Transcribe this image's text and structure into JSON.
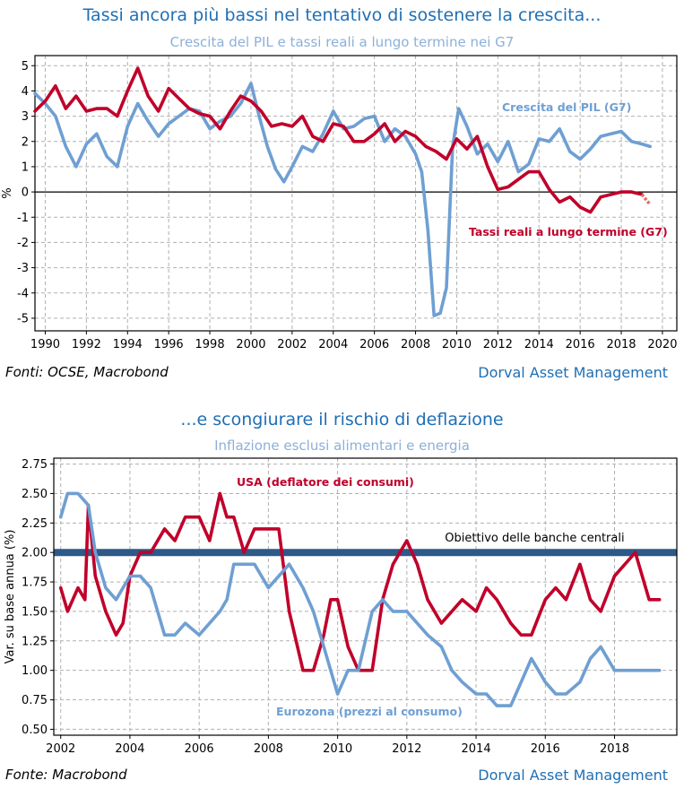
{
  "colors": {
    "title": "#1f6fb4",
    "subtitle": "#8db0d8",
    "red": "#c0002a",
    "blue": "#6f9fd2",
    "target": "#2d5a88",
    "grid": "#b0b0b0"
  },
  "chart_data": [
    {
      "type": "line",
      "title": "Tassi ancora più bassi nel tentativo di sostenere la crescita...",
      "subtitle": "Crescita del PIL e tassi reali a lungo termine nei G7",
      "ylabel": "%",
      "xlim": [
        1989.5,
        2020.7
      ],
      "ylim": [
        -5.5,
        5.4
      ],
      "x_ticks": [
        1990,
        1992,
        1994,
        1996,
        1998,
        2000,
        2002,
        2004,
        2006,
        2008,
        2010,
        2012,
        2014,
        2016,
        2018,
        2020
      ],
      "x_tick_labels": [
        "1990",
        "1992",
        "1994",
        "1996",
        "1998",
        "2000",
        "2002",
        "2004",
        "2006",
        "2008",
        "2010",
        "2012",
        "2014",
        "2016",
        "2018",
        "2020"
      ],
      "y_ticks": [
        -5,
        -4,
        -3,
        -2,
        -1,
        0,
        1,
        2,
        3,
        4,
        5
      ],
      "y_tick_labels": [
        "-5",
        "-4",
        "-3",
        "-2",
        "-1",
        "0",
        "1",
        "2",
        "3",
        "4",
        "5"
      ],
      "grid": true,
      "source": "Fonti: OCSE, Macrobond",
      "brand": "Dorval Asset Management",
      "series": [
        {
          "name": "Crescita del PIL (G7)",
          "color": "#6f9fd2",
          "x": [
            1989.5,
            1990,
            1990.5,
            1991,
            1991.5,
            1992,
            1992.5,
            1993,
            1993.5,
            1994,
            1994.5,
            1995,
            1995.5,
            1996,
            1996.5,
            1997,
            1997.5,
            1998,
            1998.5,
            1999,
            1999.5,
            2000,
            2000.4,
            2000.8,
            2001.2,
            2001.6,
            2002,
            2002.5,
            2003,
            2003.5,
            2004,
            2004.5,
            2005,
            2005.5,
            2006,
            2006.5,
            2007,
            2007.5,
            2008,
            2008.3,
            2008.6,
            2008.9,
            2009.2,
            2009.5,
            2009.8,
            2010.1,
            2010.5,
            2011,
            2011.5,
            2012,
            2012.5,
            2013,
            2013.5,
            2014,
            2014.5,
            2015,
            2015.5,
            2016,
            2016.5,
            2017,
            2017.5,
            2018,
            2018.5,
            2019,
            2019.4
          ],
          "values": [
            3.9,
            3.5,
            3.0,
            1.8,
            1.0,
            1.9,
            2.3,
            1.4,
            1.0,
            2.6,
            3.5,
            2.8,
            2.2,
            2.7,
            3.0,
            3.3,
            3.2,
            2.5,
            2.8,
            3.0,
            3.5,
            4.3,
            3.0,
            1.8,
            0.9,
            0.4,
            1.0,
            1.8,
            1.6,
            2.3,
            3.2,
            2.5,
            2.6,
            2.9,
            3.0,
            2.0,
            2.5,
            2.2,
            1.5,
            0.8,
            -1.5,
            -4.9,
            -4.8,
            -3.8,
            1.8,
            3.3,
            2.6,
            1.5,
            1.9,
            1.2,
            2.0,
            0.8,
            1.1,
            2.1,
            2.0,
            2.5,
            1.6,
            1.3,
            1.7,
            2.2,
            2.3,
            2.4,
            2.0,
            1.9,
            1.8
          ]
        },
        {
          "name": "Tassi reali a lungo termine (G7)",
          "color": "#c0002a",
          "x": [
            1989.5,
            1990,
            1990.5,
            1991,
            1991.5,
            1992,
            1992.5,
            1993,
            1993.5,
            1994,
            1994.5,
            1995,
            1995.5,
            1996,
            1996.5,
            1997,
            1997.5,
            1998,
            1998.5,
            1999,
            1999.5,
            2000,
            2000.5,
            2001,
            2001.5,
            2002,
            2002.5,
            2003,
            2003.5,
            2004,
            2004.5,
            2005,
            2005.5,
            2006,
            2006.5,
            2007,
            2007.5,
            2008,
            2008.5,
            2009,
            2009.5,
            2010,
            2010.5,
            2011,
            2011.5,
            2012,
            2012.5,
            2013,
            2013.5,
            2014,
            2014.5,
            2015,
            2015.5,
            2016,
            2016.5,
            2017,
            2017.5,
            2018,
            2018.5,
            2019
          ],
          "values": [
            3.2,
            3.6,
            4.2,
            3.3,
            3.8,
            3.2,
            3.3,
            3.3,
            3.0,
            4.0,
            4.9,
            3.8,
            3.2,
            4.1,
            3.7,
            3.3,
            3.1,
            3.0,
            2.5,
            3.2,
            3.8,
            3.6,
            3.2,
            2.6,
            2.7,
            2.6,
            3.0,
            2.2,
            2.0,
            2.7,
            2.6,
            2.0,
            2.0,
            2.3,
            2.7,
            2.0,
            2.4,
            2.2,
            1.8,
            1.6,
            1.3,
            2.1,
            1.7,
            2.2,
            1.0,
            0.1,
            0.2,
            0.5,
            0.8,
            0.8,
            0.1,
            -0.4,
            -0.2,
            -0.6,
            -0.8,
            -0.2,
            -0.1,
            0.0,
            0.0,
            -0.1
          ]
        }
      ],
      "dashed_tail": {
        "x": [
          2019,
          2019.4
        ],
        "values": [
          -0.1,
          -0.5
        ],
        "color": "#e07070"
      }
    },
    {
      "type": "line",
      "title": "...e scongiurare il rischio di deflazione",
      "subtitle": "Inflazione esclusi alimentari e energia",
      "ylabel": "Var. su base annua (%)",
      "xlim": [
        2001.8,
        2019.8
      ],
      "ylim": [
        0.45,
        2.8
      ],
      "x_ticks": [
        2002,
        2004,
        2006,
        2008,
        2010,
        2012,
        2014,
        2016,
        2018
      ],
      "x_tick_labels": [
        "2002",
        "2004",
        "2006",
        "2008",
        "2010",
        "2012",
        "2014",
        "2016",
        "2018"
      ],
      "y_ticks": [
        0.5,
        0.75,
        1.0,
        1.25,
        1.5,
        1.75,
        2.0,
        2.25,
        2.5,
        2.75
      ],
      "y_tick_labels": [
        "0.50",
        "0.75",
        "1.00",
        "1.25",
        "1.50",
        "1.75",
        "2.00",
        "2.25",
        "2.50",
        "2.75"
      ],
      "grid": true,
      "source": "Fonte: Macrobond",
      "brand": "Dorval Asset Management",
      "reference_line": {
        "label": "Obiettivo delle banche centrali",
        "value": 2.0,
        "color": "#2d5a88"
      },
      "series": [
        {
          "name": "USA (deflatore dei consumi)",
          "color": "#c0002a",
          "x": [
            2002,
            2002.2,
            2002.5,
            2002.7,
            2002.8,
            2003,
            2003.3,
            2003.6,
            2003.8,
            2004,
            2004.3,
            2004.6,
            2005,
            2005.3,
            2005.6,
            2006,
            2006.3,
            2006.6,
            2006.8,
            2007,
            2007.3,
            2007.6,
            2008,
            2008.3,
            2008.6,
            2009,
            2009.3,
            2009.6,
            2009.8,
            2010,
            2010.3,
            2010.6,
            2011,
            2011.3,
            2011.6,
            2012,
            2012.3,
            2012.6,
            2013,
            2013.3,
            2013.6,
            2014,
            2014.3,
            2014.6,
            2015,
            2015.3,
            2015.6,
            2016,
            2016.3,
            2016.6,
            2017,
            2017.3,
            2017.6,
            2018,
            2018.3,
            2018.6,
            2019,
            2019.3
          ],
          "values": [
            1.7,
            1.5,
            1.7,
            1.6,
            2.4,
            1.8,
            1.5,
            1.3,
            1.4,
            1.8,
            2.0,
            2.0,
            2.2,
            2.1,
            2.3,
            2.3,
            2.1,
            2.5,
            2.3,
            2.3,
            2.0,
            2.2,
            2.2,
            2.2,
            1.5,
            1.0,
            1.0,
            1.3,
            1.6,
            1.6,
            1.2,
            1.0,
            1.0,
            1.6,
            1.9,
            2.1,
            1.9,
            1.6,
            1.4,
            1.5,
            1.6,
            1.5,
            1.7,
            1.6,
            1.4,
            1.3,
            1.3,
            1.6,
            1.7,
            1.6,
            1.9,
            1.6,
            1.5,
            1.8,
            1.9,
            2.0,
            1.6,
            1.6
          ]
        },
        {
          "name": "Eurozona (prezzi al consumo)",
          "color": "#6f9fd2",
          "x": [
            2002,
            2002.2,
            2002.5,
            2002.8,
            2003,
            2003.3,
            2003.6,
            2003.8,
            2004,
            2004.3,
            2004.6,
            2005,
            2005.3,
            2005.6,
            2006,
            2006.3,
            2006.6,
            2006.8,
            2007,
            2007.3,
            2007.6,
            2008,
            2008.3,
            2008.6,
            2009,
            2009.3,
            2009.6,
            2009.8,
            2010,
            2010.3,
            2010.6,
            2011,
            2011.3,
            2011.6,
            2012,
            2012.3,
            2012.6,
            2013,
            2013.3,
            2013.6,
            2014,
            2014.3,
            2014.6,
            2015,
            2015.3,
            2015.6,
            2016,
            2016.3,
            2016.6,
            2017,
            2017.3,
            2017.6,
            2018,
            2018.3,
            2018.6,
            2019,
            2019.3
          ],
          "values": [
            2.3,
            2.5,
            2.5,
            2.4,
            2.0,
            1.7,
            1.6,
            1.7,
            1.8,
            1.8,
            1.7,
            1.3,
            1.3,
            1.4,
            1.3,
            1.4,
            1.5,
            1.6,
            1.9,
            1.9,
            1.9,
            1.7,
            1.8,
            1.9,
            1.7,
            1.5,
            1.2,
            1.0,
            0.8,
            1.0,
            1.0,
            1.5,
            1.6,
            1.5,
            1.5,
            1.4,
            1.3,
            1.2,
            1.0,
            0.9,
            0.8,
            0.8,
            0.7,
            0.7,
            0.9,
            1.1,
            0.9,
            0.8,
            0.8,
            0.9,
            1.1,
            1.2,
            1.0,
            1.0,
            1.0,
            1.0,
            1.0
          ]
        }
      ]
    }
  ]
}
